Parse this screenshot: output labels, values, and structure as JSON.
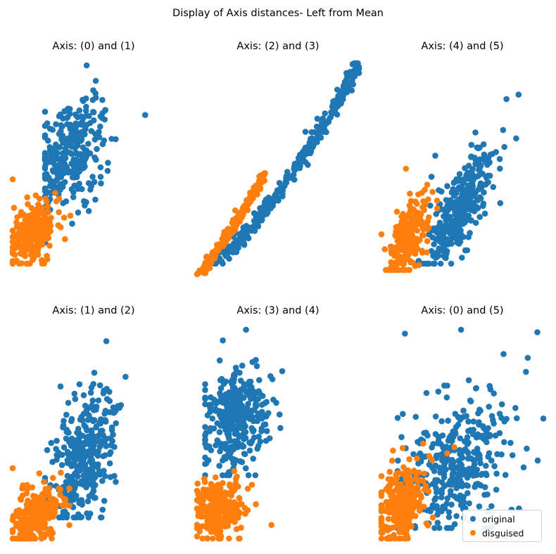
{
  "suptitle": "Display of Axis distances- Left from Mean",
  "colors": {
    "original": "#1f77b4",
    "disguised": "#ff7f0e"
  },
  "legend": {
    "placement": "lower-right",
    "entries": [
      "original",
      "disguised"
    ]
  },
  "chart_data": [
    {
      "type": "scatter",
      "title": "Axis: (0) and (1)",
      "axes_visible": false,
      "grid": false,
      "xlim": [
        0,
        100
      ],
      "ylim": [
        0,
        100
      ],
      "series": [
        {
          "name": "original",
          "pattern": "cloud",
          "n": 320,
          "center": [
            35,
            56
          ],
          "spread": [
            10,
            12
          ],
          "corr": 0.35,
          "x_range": [
            20,
            85
          ],
          "y_range": [
            15,
            99
          ]
        },
        {
          "name": "disguised",
          "pattern": "cloud",
          "n": 240,
          "center": [
            13,
            19
          ],
          "spread": [
            7,
            7
          ],
          "corr": 0.35,
          "x_range": [
            0,
            40
          ],
          "y_range": [
            5,
            45
          ]
        }
      ]
    },
    {
      "type": "scatter",
      "title": "Axis: (2) and (3)",
      "axes_visible": false,
      "grid": false,
      "xlim": [
        0,
        100
      ],
      "ylim": [
        0,
        100
      ],
      "series": [
        {
          "name": "original",
          "pattern": "curve",
          "n": 360,
          "x_range": [
            8,
            100
          ],
          "y_range": [
            5,
            100
          ],
          "power": 1.35,
          "noise": 1.6
        },
        {
          "name": "disguised",
          "pattern": "curve",
          "n": 200,
          "x_range": [
            0,
            42
          ],
          "y_range": [
            0,
            48
          ],
          "power": 1.2,
          "noise": 1.2
        }
      ]
    },
    {
      "type": "scatter",
      "title": "Axis: (4) and (5)",
      "axes_visible": false,
      "grid": false,
      "xlim": [
        0,
        100
      ],
      "ylim": [
        0,
        100
      ],
      "series": [
        {
          "name": "original",
          "pattern": "cloud",
          "n": 360,
          "center": [
            48,
            30
          ],
          "spread": [
            10,
            14
          ],
          "corr": 0.75,
          "x_range": [
            22,
            100
          ],
          "y_range": [
            5,
            99
          ]
        },
        {
          "name": "disguised",
          "pattern": "cloud",
          "n": 220,
          "center": [
            17,
            18
          ],
          "spread": [
            6,
            9
          ],
          "corr": 0.6,
          "x_range": [
            0,
            38
          ],
          "y_range": [
            2,
            50
          ]
        }
      ]
    },
    {
      "type": "scatter",
      "title": "Axis: (1) and (2)",
      "axes_visible": false,
      "grid": false,
      "xlim": [
        0,
        100
      ],
      "ylim": [
        0,
        100
      ],
      "series": [
        {
          "name": "original",
          "pattern": "cloud",
          "n": 360,
          "center": [
            43,
            38
          ],
          "spread": [
            10,
            16
          ],
          "corr": 0.45,
          "x_range": [
            20,
            100
          ],
          "y_range": [
            10,
            99
          ]
        },
        {
          "name": "disguised",
          "pattern": "cloud",
          "n": 260,
          "center": [
            14,
            11
          ],
          "spread": [
            7,
            7
          ],
          "corr": 0.35,
          "x_range": [
            0,
            35
          ],
          "y_range": [
            0,
            35
          ]
        }
      ]
    },
    {
      "type": "scatter",
      "title": "Axis: (3) and (4)",
      "axes_visible": false,
      "grid": false,
      "xlim": [
        0,
        100
      ],
      "ylim": [
        0,
        100
      ],
      "series": [
        {
          "name": "original",
          "pattern": "cloud",
          "n": 340,
          "center": [
            24,
            57
          ],
          "spread": [
            9,
            11
          ],
          "corr": 0.1,
          "x_range": [
            5,
            100
          ],
          "y_range": [
            30,
            99
          ]
        },
        {
          "name": "disguised",
          "pattern": "cloud",
          "n": 260,
          "center": [
            13,
            14
          ],
          "spread": [
            7,
            7
          ],
          "corr": 0.0,
          "x_range": [
            0,
            50
          ],
          "y_range": [
            0,
            32
          ]
        }
      ]
    },
    {
      "type": "scatter",
      "title": "Axis: (0) and (5)",
      "axes_visible": false,
      "grid": false,
      "xlim": [
        0,
        100
      ],
      "ylim": [
        0,
        100
      ],
      "series": [
        {
          "name": "original",
          "pattern": "cloud",
          "n": 380,
          "center": [
            45,
            35
          ],
          "spread": [
            15,
            15
          ],
          "corr": 0.35,
          "x_range": [
            10,
            100
          ],
          "y_range": [
            5,
            99
          ]
        },
        {
          "name": "disguised",
          "pattern": "cloud",
          "n": 260,
          "center": [
            13,
            16
          ],
          "spread": [
            7,
            9
          ],
          "corr": 0.4,
          "x_range": [
            0,
            45
          ],
          "y_range": [
            0,
            45
          ]
        }
      ]
    }
  ]
}
